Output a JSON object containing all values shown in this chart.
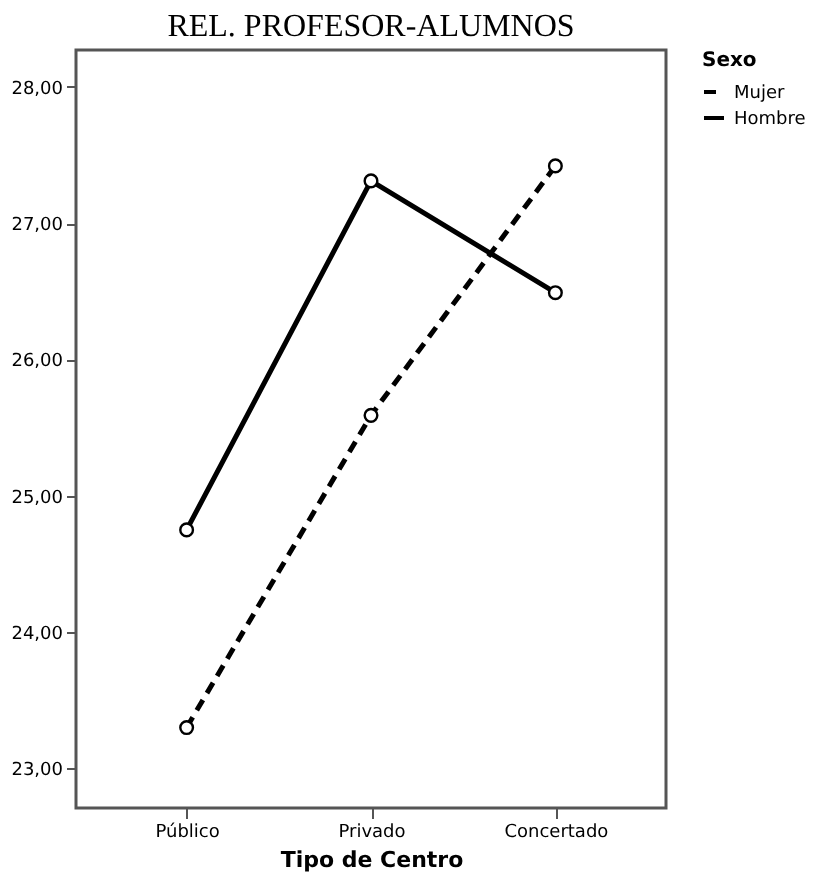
{
  "chart_data": {
    "type": "line",
    "title": "REL. PROFESOR-ALUMNOS",
    "xlabel": "Tipo de Centro",
    "legend_title": "Sexo",
    "categories": [
      "Público",
      "Privado",
      "Concertado"
    ],
    "series": [
      {
        "name": "Mujer",
        "color": "#000000",
        "line_style": "dashed",
        "values": [
          23.3,
          25.59,
          27.42
        ]
      },
      {
        "name": "Hombre",
        "color": "#000000",
        "line_style": "solid",
        "values": [
          24.75,
          27.31,
          26.49
        ]
      }
    ],
    "ylim": [
      22.71,
      28.27
    ],
    "yticks": [
      {
        "value": 23,
        "label": "23,00"
      },
      {
        "value": 24,
        "label": "24,00"
      },
      {
        "value": 25,
        "label": "25,00"
      },
      {
        "value": 26,
        "label": "26,00"
      },
      {
        "value": 27,
        "label": "27,00"
      },
      {
        "value": 28,
        "label": "28,00"
      }
    ],
    "marker": "circle",
    "grid": false,
    "legend": "top right"
  }
}
